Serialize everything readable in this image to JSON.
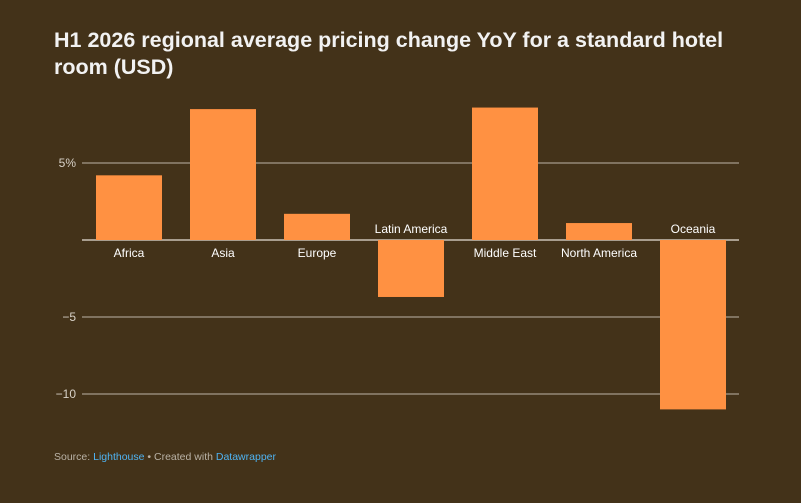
{
  "title": "H1 2026 regional average pricing change YoY for a standard hotel room (USD)",
  "footer": {
    "source_prefix": "Source:",
    "source_link": "Lighthouse",
    "separator": " • Created with ",
    "tool_link": "Datawrapper"
  },
  "colors": {
    "background": "#433219",
    "bar": "#FF9142",
    "grid": "#e6e0d6",
    "tick_text": "#d8d2c8",
    "label_text": "#ffffff",
    "link": "#4fb3f2"
  },
  "chart_data": {
    "type": "bar",
    "title": "H1 2026 regional average pricing change YoY for a standard hotel room (USD)",
    "categories": [
      "Africa",
      "Asia",
      "Europe",
      "Latin America",
      "Middle East",
      "North America",
      "Oceania"
    ],
    "values": [
      4.2,
      8.5,
      1.7,
      -3.7,
      8.6,
      1.1,
      -11.0
    ],
    "yticks": [
      5,
      0,
      -5,
      -10
    ],
    "ytick_labels": [
      "5%",
      "",
      "−5",
      "−10"
    ],
    "ylim": [
      -11.5,
      9
    ],
    "grid": true,
    "xlabel": "",
    "ylabel": ""
  }
}
